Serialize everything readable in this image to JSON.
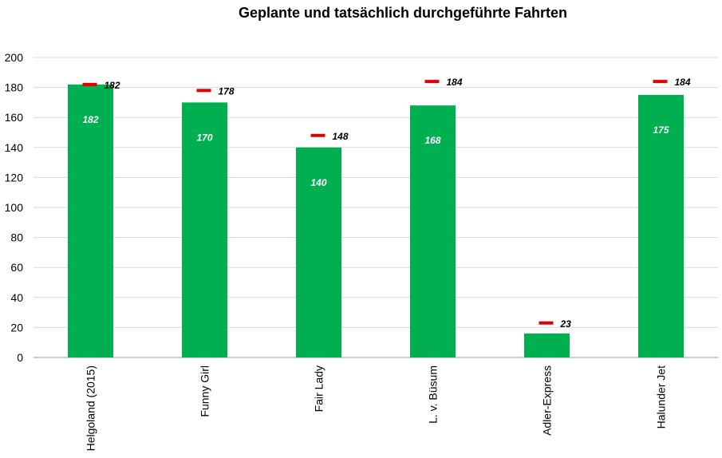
{
  "chart_data": {
    "type": "bar",
    "title": "Geplante und tatsächlich durchgeführte Fahrten",
    "categories": [
      "Helgoland (2015)",
      "Funny Girl",
      "Fair Lady",
      "L. v. Büsum",
      "Adler-Express",
      "Halunder Jet"
    ],
    "series": [
      {
        "values": [
          182,
          170,
          140,
          168,
          16,
          175
        ],
        "color": "#00b050",
        "style": "bar"
      },
      {
        "values": [
          182,
          178,
          148,
          184,
          23,
          184
        ],
        "color": "#e00000",
        "style": "marker"
      }
    ],
    "ylim": [
      0,
      200
    ],
    "yticks": [
      0,
      20,
      40,
      60,
      80,
      100,
      120,
      140,
      160,
      180,
      200
    ],
    "grid": true,
    "legend": "none"
  }
}
